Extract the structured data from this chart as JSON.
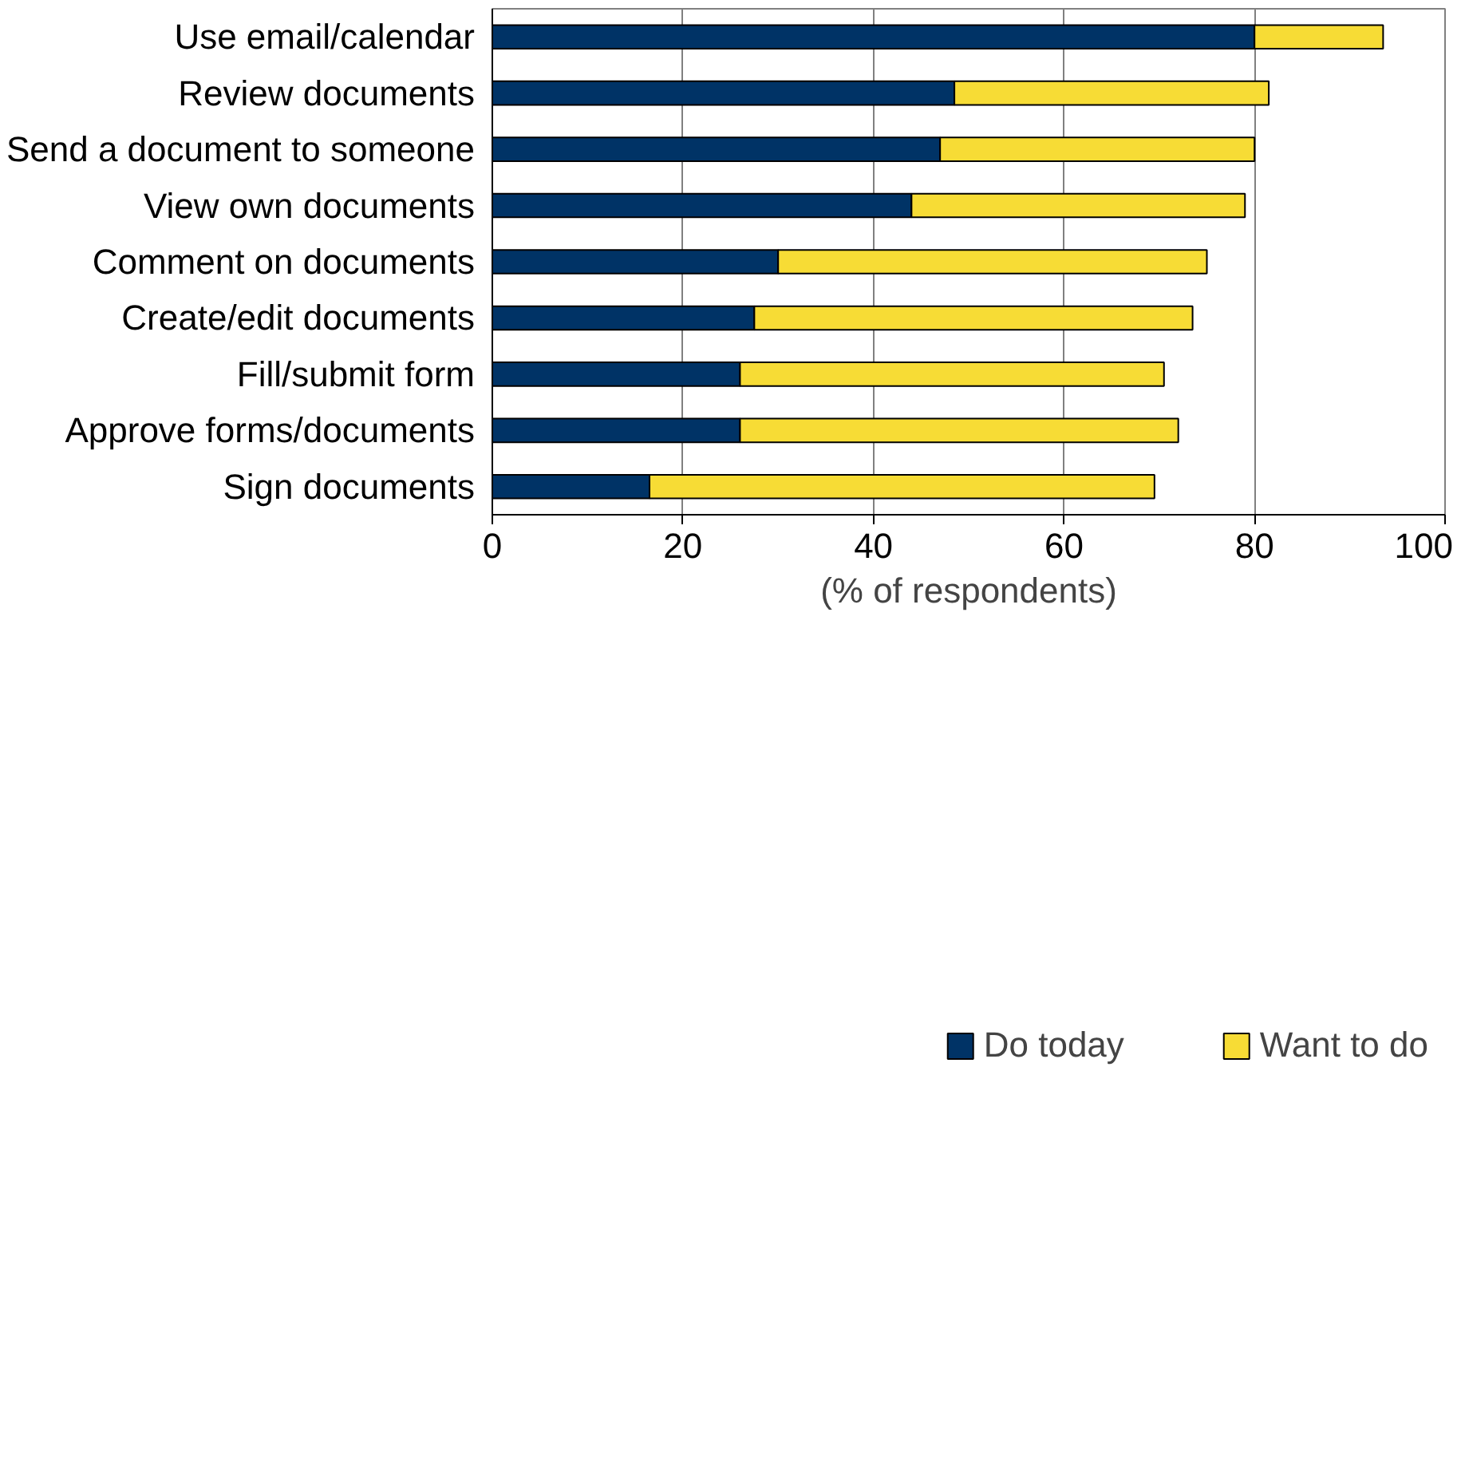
{
  "chart_data": {
    "type": "bar",
    "orientation": "horizontal",
    "stacked": true,
    "xlabel": "(% of respondents)",
    "categories": [
      "Use email/calendar",
      "Review documents",
      "Send a document to someone",
      "View own documents",
      "Comment on documents",
      "Create/edit documents",
      "Fill/submit form",
      "Approve forms/documents",
      "Sign documents"
    ],
    "series": [
      {
        "name": "Do today",
        "color": "#003366",
        "values": [
          80,
          48.5,
          47,
          44,
          30,
          27.5,
          26,
          26,
          16.5
        ]
      },
      {
        "name": "Want to do",
        "color": "#f7dc35",
        "values": [
          13.5,
          33,
          33,
          35,
          45,
          46,
          44.5,
          46,
          53
        ]
      }
    ],
    "xlim": [
      0,
      100
    ],
    "xticks": [
      0,
      20,
      40,
      60,
      80,
      100
    ],
    "grid": "x",
    "legend": "bottom"
  }
}
